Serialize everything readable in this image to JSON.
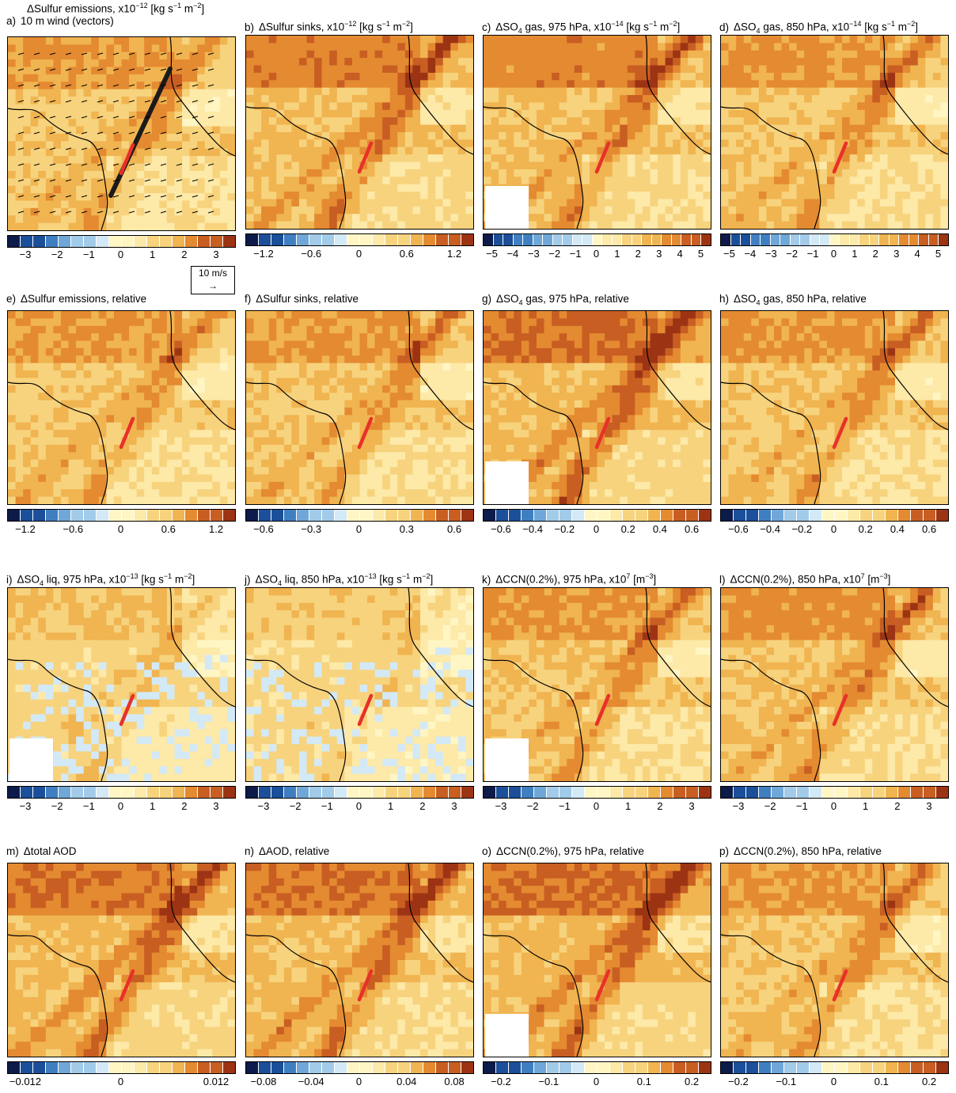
{
  "colors": {
    "scale": [
      "#0d1b4a",
      "#1b4f9a",
      "#3f7fc1",
      "#6fa8d8",
      "#a2cbe9",
      "#d3e9f6",
      "#fff6c4",
      "#fde9a8",
      "#f7d37e",
      "#f0b450",
      "#e48a31",
      "#c85e22",
      "#9c3414"
    ],
    "land": "#fde9a8",
    "coast": "#000000",
    "track": "#e8302a",
    "wind_track": "#1a1a1a"
  },
  "panels": [
    {
      "id": "a",
      "label": "a)",
      "title_html": "10 m wind (vectors)",
      "supertitle": "ΔSulfur emissions, x10<sup>−12</sup> [kg s<sup>−1</sup> m<sup>−2</sup>]",
      "ticks": [
        "−3",
        "−2",
        "−1",
        "0",
        "1",
        "2",
        "3"
      ],
      "wind_key": "10 m/s",
      "intensity": 0.55
    },
    {
      "id": "b",
      "label": "b)",
      "title_html": "ΔSulfur sinks, x10<sup>−12</sup> [kg s<sup>−1</sup> m<sup>−2</sup>]",
      "ticks": [
        "−1.2",
        "−0.6",
        "0",
        "0.6",
        "1.2"
      ],
      "intensity": 0.75
    },
    {
      "id": "c",
      "label": "c)",
      "title_html": "ΔSO<sub>4</sub> gas, 975 hPa, x10<sup>−14</sup> [kg s<sup>−1</sup> m<sup>−2</sup>]",
      "ticks": [
        "−5",
        "−4",
        "−3",
        "−2",
        "−1",
        "0",
        "1",
        "2",
        "3",
        "4",
        "5"
      ],
      "intensity": 0.7
    },
    {
      "id": "d",
      "label": "d)",
      "title_html": "ΔSO<sub>4</sub> gas, 850 hPa, x10<sup>−14</sup> [kg s<sup>−1</sup> m<sup>−2</sup>]",
      "ticks": [
        "−5",
        "−4",
        "−3",
        "−2",
        "−1",
        "0",
        "1",
        "2",
        "3",
        "4",
        "5"
      ],
      "intensity": 0.6
    },
    {
      "id": "e",
      "label": "e)",
      "title_html": "ΔSulfur emissions, relative",
      "ticks": [
        "−1.2",
        "−0.6",
        "0",
        "0.6",
        "1.2"
      ],
      "intensity": 0.55
    },
    {
      "id": "f",
      "label": "f)",
      "title_html": "ΔSulfur sinks, relative",
      "ticks": [
        "−0.6",
        "−0.3",
        "0",
        "0.3",
        "0.6"
      ],
      "intensity": 0.6
    },
    {
      "id": "g",
      "label": "g)",
      "title_html": "ΔSO<sub>4</sub> gas, 975 hPa, relative",
      "ticks": [
        "−0.6",
        "−0.4",
        "−0.2",
        "0",
        "0.2",
        "0.4",
        "0.6"
      ],
      "intensity": 0.85
    },
    {
      "id": "h",
      "label": "h)",
      "title_html": "ΔSO<sub>4</sub> gas, 850 hPa, relative",
      "ticks": [
        "−0.6",
        "−0.4",
        "−0.2",
        "0",
        "0.2",
        "0.4",
        "0.6"
      ],
      "intensity": 0.6
    },
    {
      "id": "i",
      "label": "i)",
      "title_html": "ΔSO<sub>4</sub> liq, 975 hPa, x10<sup>−13</sup> [kg s<sup>−1</sup> m<sup>−2</sup>]",
      "ticks": [
        "−3",
        "−2",
        "−1",
        "0",
        "1",
        "2",
        "3"
      ],
      "intensity": 0.3
    },
    {
      "id": "j",
      "label": "j)",
      "title_html": "ΔSO<sub>4</sub> liq, 850 hPa, x10<sup>−13</sup> [kg s<sup>−1</sup> m<sup>−2</sup>]",
      "ticks": [
        "−3",
        "−2",
        "−1",
        "0",
        "1",
        "2",
        "3"
      ],
      "intensity": 0.2
    },
    {
      "id": "k",
      "label": "k)",
      "title_html": "ΔCCN(0.2%), 975 hPa, x10<sup>7</sup> [m<sup>−3</sup>]",
      "ticks": [
        "−3",
        "−2",
        "−1",
        "0",
        "1",
        "2",
        "3"
      ],
      "intensity": 0.6
    },
    {
      "id": "l",
      "label": "l)",
      "title_html": "ΔCCN(0.2%), 850 hPa, x10<sup>7</sup> [m<sup>−3</sup>]",
      "ticks": [
        "−3",
        "−2",
        "−1",
        "0",
        "1",
        "2",
        "3"
      ],
      "intensity": 0.65
    },
    {
      "id": "m",
      "label": "m)",
      "title_html": "Δtotal AOD",
      "ticks": [
        "−0.012",
        "0",
        "0.012"
      ],
      "intensity": 0.8
    },
    {
      "id": "n",
      "label": "n)",
      "title_html": "ΔAOD, relative",
      "ticks": [
        "−0.08",
        "−0.04",
        "0",
        "0.04",
        "0.08"
      ],
      "intensity": 0.8
    },
    {
      "id": "o",
      "label": "o)",
      "title_html": "ΔCCN(0.2%), 975 hPa, relative",
      "ticks": [
        "−0.2",
        "−0.1",
        "0",
        "0.1",
        "0.2"
      ],
      "intensity": 0.85
    },
    {
      "id": "p",
      "label": "p)",
      "title_html": "ΔCCN(0.2%), 850 hPa, relative",
      "ticks": [
        "−0.2",
        "−0.1",
        "0",
        "0.1",
        "0.2"
      ],
      "intensity": 0.6
    }
  ]
}
